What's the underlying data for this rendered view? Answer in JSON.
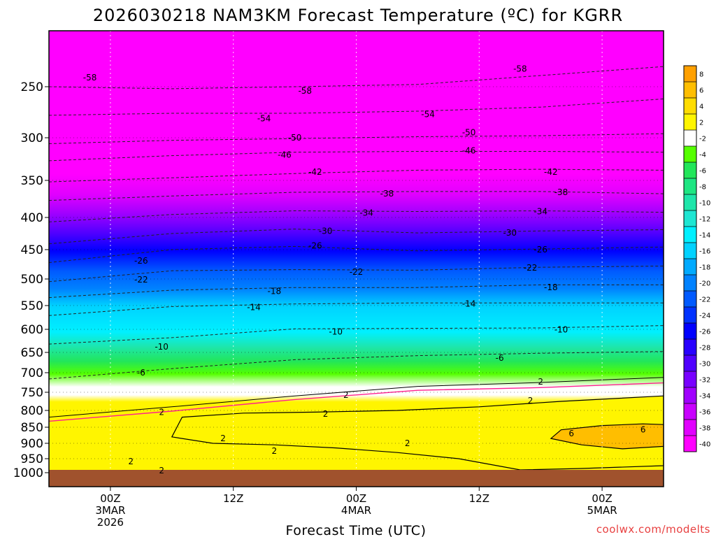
{
  "chart_data": {
    "type": "heatmap",
    "title": "2026030218 NAM3KM Forecast Temperature (ºC) for KGRR",
    "xlabel": "Forecast Time (UTC)",
    "ylabel": "",
    "x_ticks": [
      {
        "lines": [
          "00Z",
          "3MAR",
          "2026"
        ],
        "hour": 6
      },
      {
        "lines": [
          "12Z"
        ],
        "hour": 18
      },
      {
        "lines": [
          "00Z",
          "4MAR"
        ],
        "hour": 30
      },
      {
        "lines": [
          "12Z"
        ],
        "hour": 42
      },
      {
        "lines": [
          "00Z",
          "5MAR"
        ],
        "hour": 54
      }
    ],
    "x_range_hours": [
      0,
      60
    ],
    "y_range_hpa": [
      200,
      1013
    ],
    "pressure_levels": [
      250,
      300,
      350,
      400,
      450,
      500,
      550,
      600,
      650,
      700,
      750,
      800,
      850,
      900,
      950,
      1000
    ],
    "ytick_labels": [
      "250",
      "300",
      "350",
      "400",
      "450",
      "500",
      "550",
      "600",
      "650",
      "700",
      "750",
      "800",
      "850",
      "900",
      "950",
      "1000"
    ],
    "colorbar": {
      "tick_labels": [
        "8",
        "6",
        "4",
        "2",
        "-2",
        "-4",
        "-6",
        "-8",
        "-10",
        "-12",
        "-14",
        "-16",
        "-18",
        "-20",
        "-22",
        "-24",
        "-26",
        "-28",
        "-30",
        "-32",
        "-34",
        "-36",
        "-38",
        "-40"
      ],
      "colors": [
        "#ffa000",
        "#ffbe00",
        "#ffdc00",
        "#fff500",
        "#ffffff",
        "#55ff00",
        "#22e65a",
        "#1ee682",
        "#1ee6aa",
        "#1ee6d2",
        "#00f0ff",
        "#00d2ff",
        "#00aaff",
        "#0082ff",
        "#005aff",
        "#0032ff",
        "#0000ff",
        "#2800ff",
        "#5000ff",
        "#7800ff",
        "#a000ff",
        "#c800ff",
        "#e100ff",
        "#ff00ff"
      ]
    },
    "contours": [
      {
        "value": -58,
        "label": "-58",
        "hours": [
          0,
          12,
          24,
          36,
          48,
          60
        ],
        "hpa": [
          250,
          252,
          250,
          248,
          240,
          232
        ]
      },
      {
        "value": -54,
        "label": "-54",
        "hours": [
          0,
          12,
          24,
          36,
          48,
          60
        ],
        "hpa": [
          278,
          276,
          276,
          274,
          270,
          262
        ]
      },
      {
        "value": -50,
        "label": "-50",
        "hours": [
          0,
          12,
          24,
          36,
          48,
          60
        ],
        "hpa": [
          307,
          303,
          301,
          299,
          298,
          296
        ]
      },
      {
        "value": -46,
        "label": "-46",
        "hours": [
          0,
          12,
          24,
          36,
          48,
          60
        ],
        "hpa": [
          327,
          321,
          317,
          316,
          316,
          317
        ]
      },
      {
        "value": -42,
        "label": "-42",
        "hours": [
          0,
          12,
          24,
          36,
          48,
          60
        ],
        "hpa": [
          352,
          347,
          342,
          338,
          337,
          338
        ]
      },
      {
        "value": -38,
        "label": "-38",
        "hours": [
          0,
          12,
          24,
          36,
          48,
          60
        ],
        "hpa": [
          377,
          371,
          366,
          365,
          365,
          368
        ]
      },
      {
        "value": -34,
        "label": "-34",
        "hours": [
          0,
          12,
          24,
          36,
          48,
          60
        ],
        "hpa": [
          407,
          396,
          391,
          392,
          391,
          393
        ]
      },
      {
        "value": -30,
        "label": "-30",
        "hours": [
          0,
          12,
          24,
          36,
          48,
          60
        ],
        "hpa": [
          441,
          425,
          418,
          424,
          421,
          419
        ]
      },
      {
        "value": -26,
        "label": "-26",
        "hours": [
          0,
          12,
          24,
          36,
          48,
          60
        ],
        "hpa": [
          472,
          450,
          445,
          452,
          449,
          446
        ]
      },
      {
        "value": -22,
        "label": "-22",
        "hours": [
          0,
          12,
          24,
          36,
          48,
          60
        ],
        "hpa": [
          505,
          486,
          484,
          485,
          480,
          478
        ]
      },
      {
        "value": -18,
        "label": "-18",
        "hours": [
          0,
          12,
          24,
          36,
          48,
          60
        ],
        "hpa": [
          535,
          521,
          516,
          516,
          511,
          511
        ]
      },
      {
        "value": -14,
        "label": "-14",
        "hours": [
          0,
          12,
          24,
          36,
          48,
          60
        ],
        "hpa": [
          571,
          552,
          547,
          545,
          545,
          545
        ]
      },
      {
        "value": -10,
        "label": "-10",
        "hours": [
          0,
          12,
          24,
          36,
          48,
          60
        ],
        "hpa": [
          632,
          618,
          599,
          598,
          597,
          592
        ]
      },
      {
        "value": -6,
        "label": "-6",
        "hours": [
          0,
          12,
          24,
          36,
          48,
          60
        ],
        "hpa": [
          716,
          690,
          668,
          658,
          652,
          648
        ]
      },
      {
        "value": 2,
        "label": "2",
        "hours": [
          0,
          12,
          24,
          36,
          48,
          60
        ],
        "hpa": [
          820,
          790,
          760,
          735,
          725,
          712
        ]
      }
    ],
    "label_positions": [
      {
        "text": "-58",
        "hour": 4,
        "hpa": 242
      },
      {
        "text": "-58",
        "hour": 25,
        "hpa": 254
      },
      {
        "text": "-58",
        "hour": 46,
        "hpa": 234
      },
      {
        "text": "-54",
        "hour": 21,
        "hpa": 281
      },
      {
        "text": "-54",
        "hour": 37,
        "hpa": 277
      },
      {
        "text": "-50",
        "hour": 24,
        "hpa": 300
      },
      {
        "text": "-50",
        "hour": 41,
        "hpa": 295
      },
      {
        "text": "-46",
        "hour": 23,
        "hpa": 320
      },
      {
        "text": "-46",
        "hour": 41,
        "hpa": 315
      },
      {
        "text": "-42",
        "hour": 26,
        "hpa": 340
      },
      {
        "text": "-42",
        "hour": 49,
        "hpa": 340
      },
      {
        "text": "-38",
        "hour": 33,
        "hpa": 368
      },
      {
        "text": "-38",
        "hour": 50,
        "hpa": 366
      },
      {
        "text": "-34",
        "hour": 31,
        "hpa": 394
      },
      {
        "text": "-34",
        "hour": 48,
        "hpa": 392
      },
      {
        "text": "-30",
        "hour": 27,
        "hpa": 421
      },
      {
        "text": "-30",
        "hour": 45,
        "hpa": 424
      },
      {
        "text": "-26",
        "hour": 9,
        "hpa": 469
      },
      {
        "text": "-26",
        "hour": 26,
        "hpa": 444
      },
      {
        "text": "-26",
        "hour": 48,
        "hpa": 450
      },
      {
        "text": "-22",
        "hour": 9,
        "hpa": 501
      },
      {
        "text": "-22",
        "hour": 30,
        "hpa": 488
      },
      {
        "text": "-22",
        "hour": 47,
        "hpa": 481
      },
      {
        "text": "-18",
        "hour": 22,
        "hpa": 523
      },
      {
        "text": "-18",
        "hour": 49,
        "hpa": 516
      },
      {
        "text": "-14",
        "hour": 20,
        "hpa": 554
      },
      {
        "text": "-14",
        "hour": 41,
        "hpa": 547
      },
      {
        "text": "-10",
        "hour": 11,
        "hpa": 638
      },
      {
        "text": "-10",
        "hour": 28,
        "hpa": 605
      },
      {
        "text": "-10",
        "hour": 50,
        "hpa": 601
      },
      {
        "text": "-6",
        "hour": 9,
        "hpa": 700
      },
      {
        "text": "-6",
        "hour": 44,
        "hpa": 664
      },
      {
        "text": "2",
        "hour": 11,
        "hpa": 805
      },
      {
        "text": "2",
        "hour": 29,
        "hpa": 758
      },
      {
        "text": "2",
        "hour": 48,
        "hpa": 723
      },
      {
        "text": "2",
        "hour": 47,
        "hpa": 773
      },
      {
        "text": "2",
        "hour": 27,
        "hpa": 810
      },
      {
        "text": "2",
        "hour": 17,
        "hpa": 885
      },
      {
        "text": "2",
        "hour": 22,
        "hpa": 925
      },
      {
        "text": "2",
        "hour": 35,
        "hpa": 900
      },
      {
        "text": "2",
        "hour": 8,
        "hpa": 960
      },
      {
        "text": "2",
        "hour": 11,
        "hpa": 992
      },
      {
        "text": "6",
        "hour": 51,
        "hpa": 870
      },
      {
        "text": "6",
        "hour": 58,
        "hpa": 858
      }
    ]
  },
  "credit": "coolwx.com/modelts"
}
